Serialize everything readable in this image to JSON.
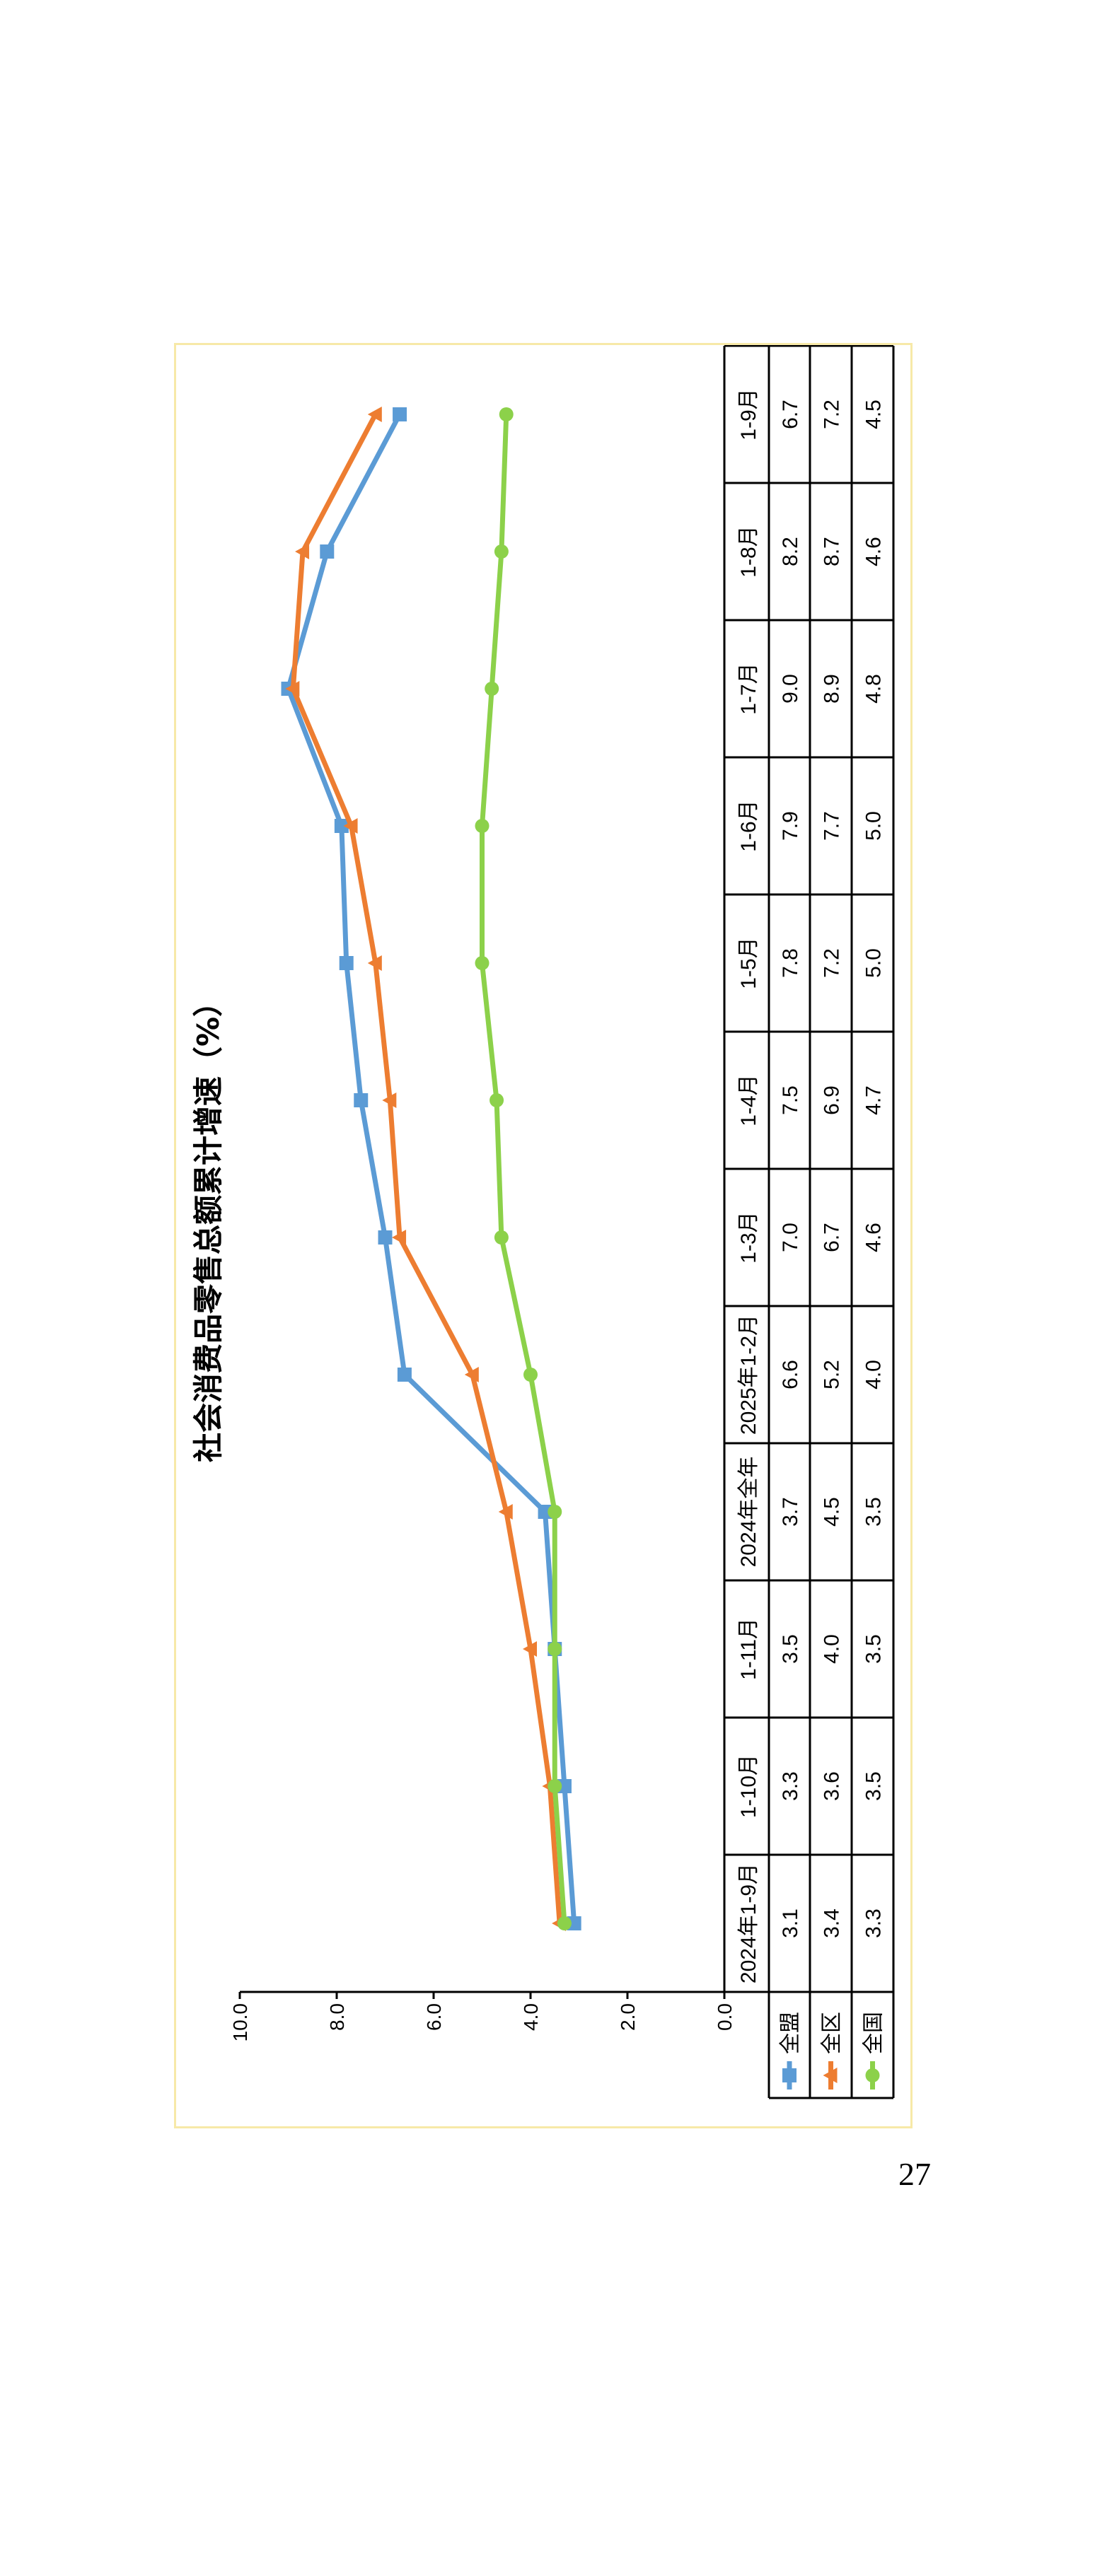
{
  "page": {
    "number": "27"
  },
  "chart_data": {
    "type": "line",
    "title": "社会消费品零售总额累计增速（%）",
    "categories": [
      "2024年1-9月",
      "1-10月",
      "1-11月",
      "2024年全年",
      "2025年1-2月",
      "1-3月",
      "1-4月",
      "1-5月",
      "1-6月",
      "1-7月",
      "1-8月",
      "1-9月"
    ],
    "series": [
      {
        "name": "全盟",
        "color": "#5b9bd5",
        "marker": "square",
        "values": [
          3.1,
          3.3,
          3.5,
          3.7,
          6.6,
          7.0,
          7.5,
          7.8,
          7.9,
          9.0,
          8.2,
          6.7
        ]
      },
      {
        "name": "全区",
        "color": "#ed7d31",
        "marker": "triangle",
        "values": [
          3.4,
          3.6,
          4.0,
          4.5,
          5.2,
          6.7,
          6.9,
          7.2,
          7.7,
          8.9,
          8.7,
          7.2
        ]
      },
      {
        "name": "全国",
        "color": "#8cd14a",
        "marker": "circle",
        "values": [
          3.3,
          3.5,
          3.5,
          3.5,
          4.0,
          4.6,
          4.7,
          5.0,
          5.0,
          4.8,
          4.6,
          4.5
        ]
      }
    ],
    "ylim": [
      0,
      10
    ],
    "yticks": [
      "0.0",
      "2.0",
      "4.0",
      "6.0",
      "8.0",
      "10.0"
    ],
    "data_table": true,
    "grid": false,
    "orientation": "rotated 90° counter-clockwise on page"
  }
}
